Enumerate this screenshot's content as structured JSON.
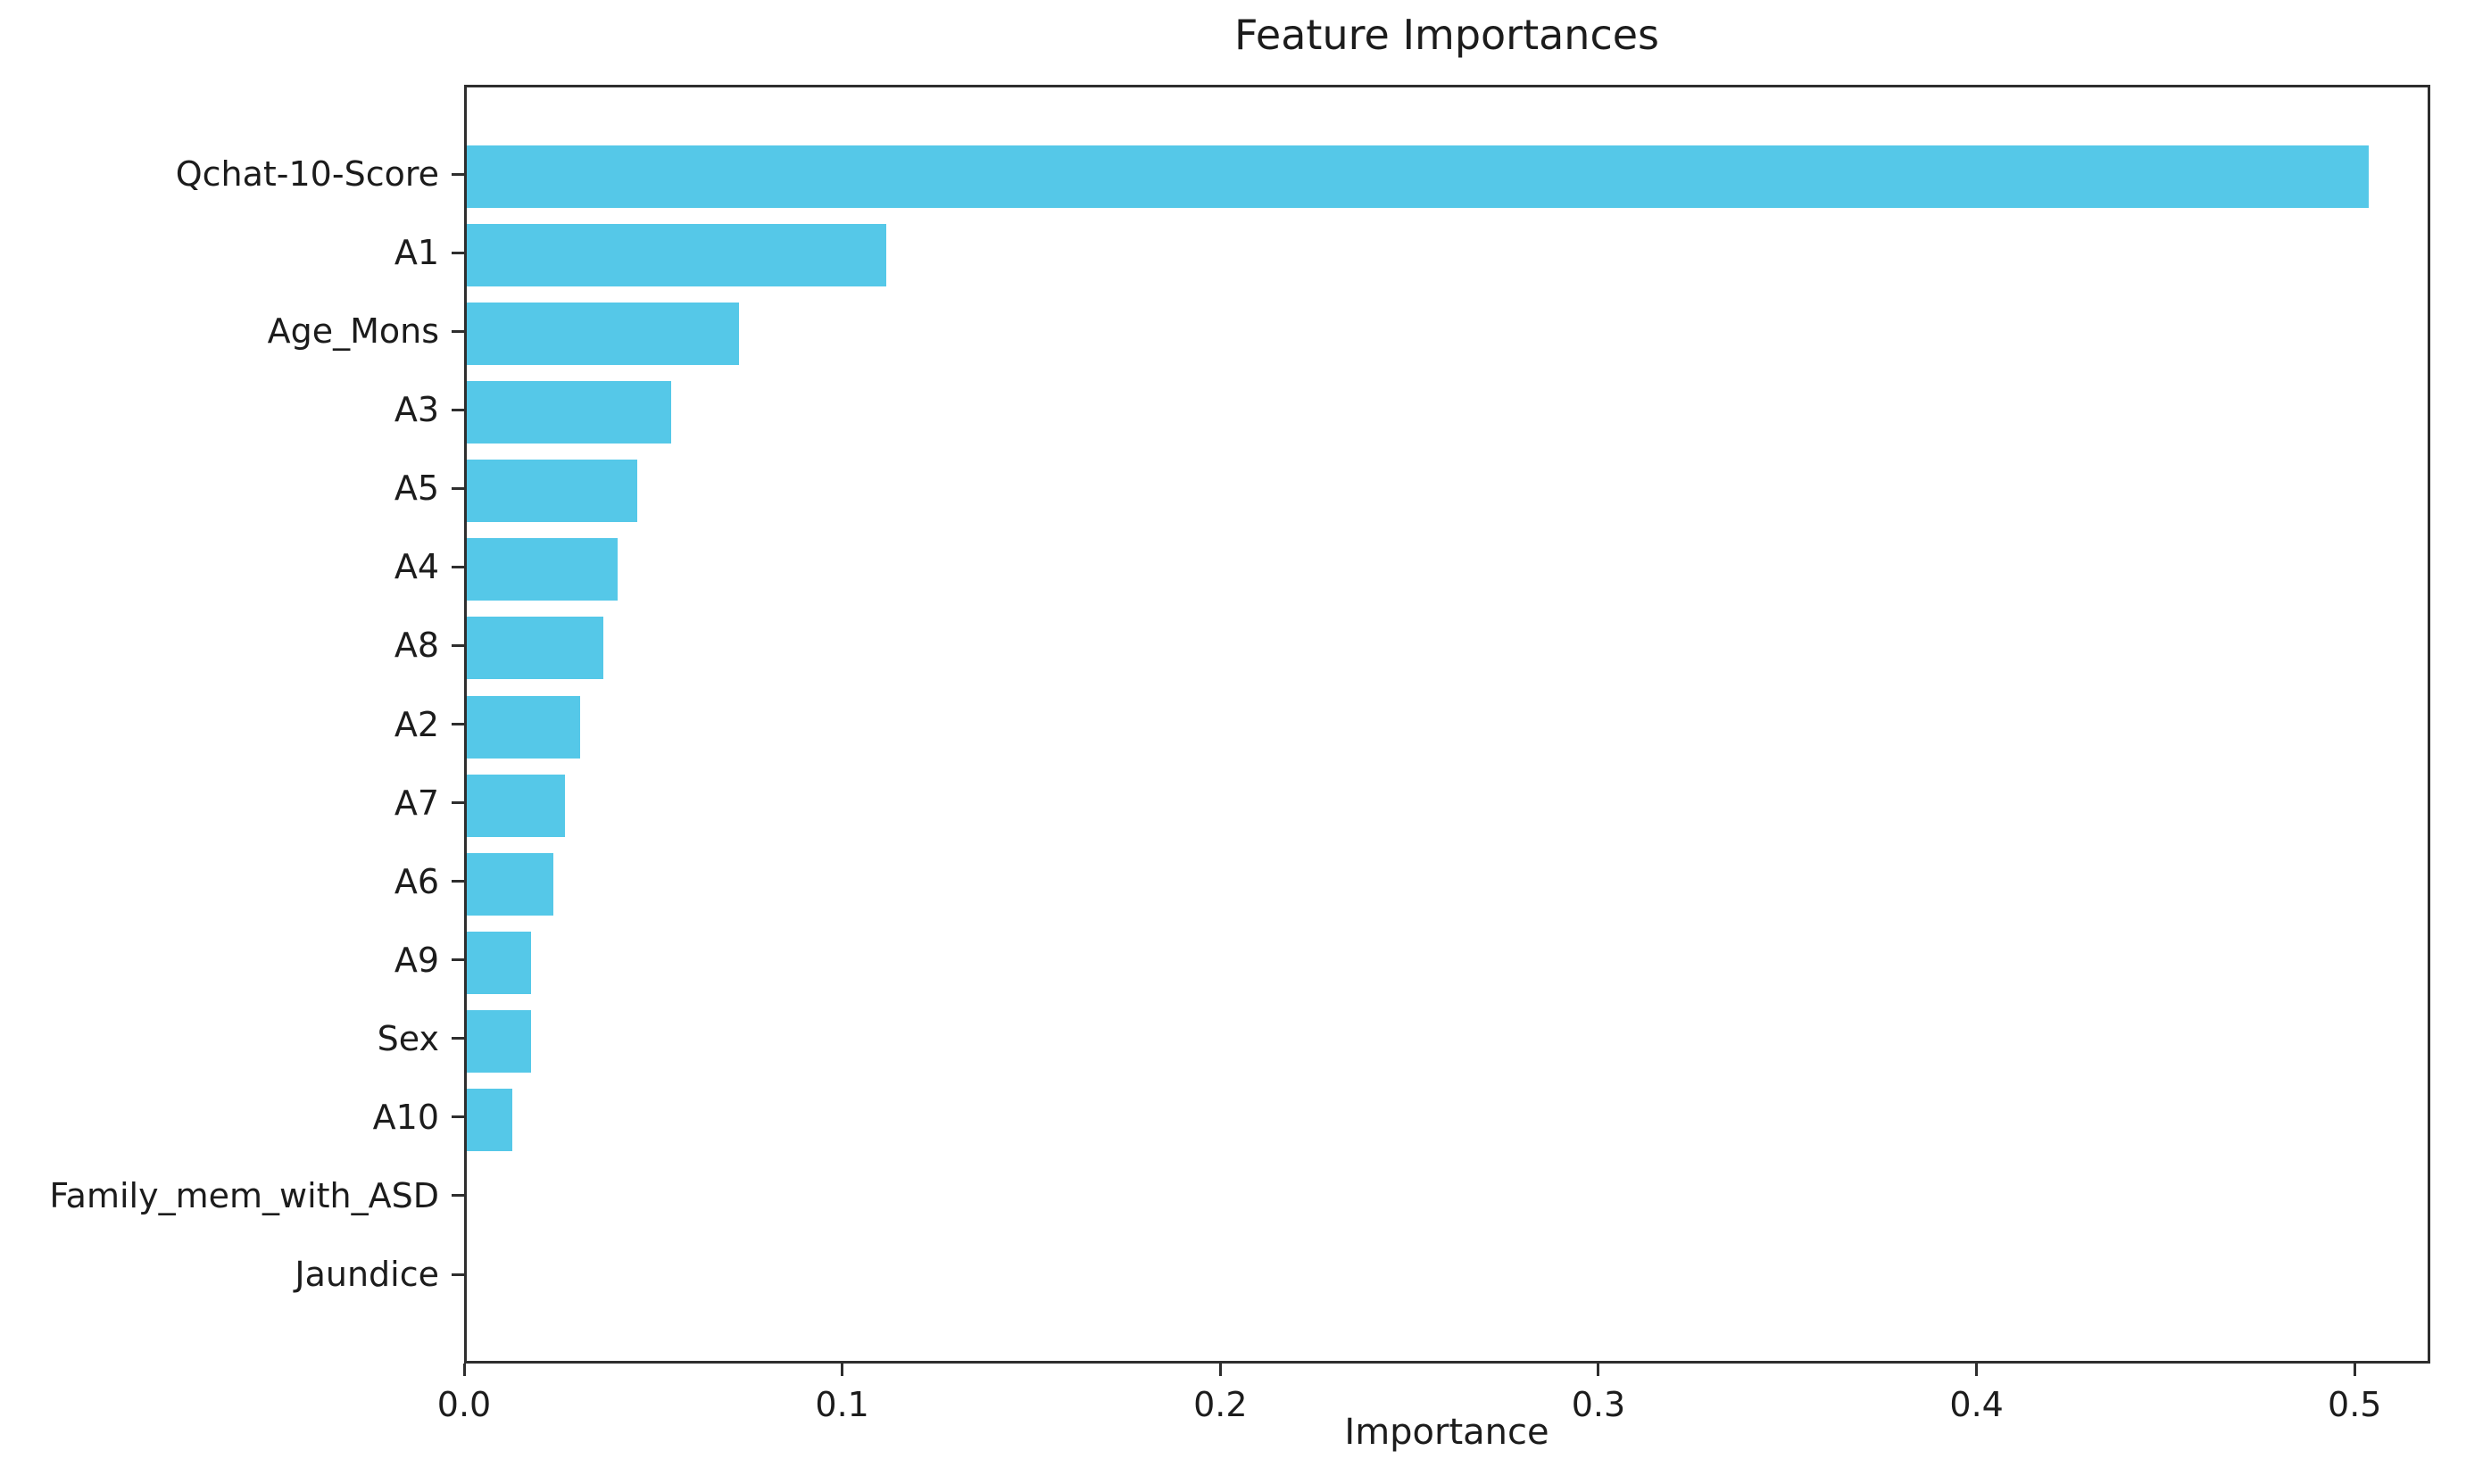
{
  "chart_data": {
    "type": "bar",
    "orientation": "horizontal",
    "title": "Feature Importances",
    "xlabel": "Importance",
    "ylabel": "",
    "categories": [
      "Qchat-10-Score",
      "A1",
      "Age_Mons",
      "A3",
      "A5",
      "A4",
      "A8",
      "A2",
      "A7",
      "A6",
      "A9",
      "Sex",
      "A10",
      "Family_mem_with_ASD",
      "Jaundice"
    ],
    "values": [
      0.503,
      0.111,
      0.072,
      0.054,
      0.045,
      0.04,
      0.036,
      0.03,
      0.026,
      0.023,
      0.017,
      0.017,
      0.012,
      0.0,
      0.0
    ],
    "xticks": [
      0.0,
      0.1,
      0.2,
      0.3,
      0.4,
      0.5
    ],
    "xtick_labels": [
      "0.0",
      "0.1",
      "0.2",
      "0.3",
      "0.4",
      "0.5"
    ],
    "xlim": [
      0,
      0.52
    ],
    "grid": false,
    "legend": null
  },
  "style": {
    "bar_color": "#55c8e8",
    "spine_color": "#2e2e2e",
    "text_color": "#1c1c1c",
    "background": "#ffffff"
  }
}
